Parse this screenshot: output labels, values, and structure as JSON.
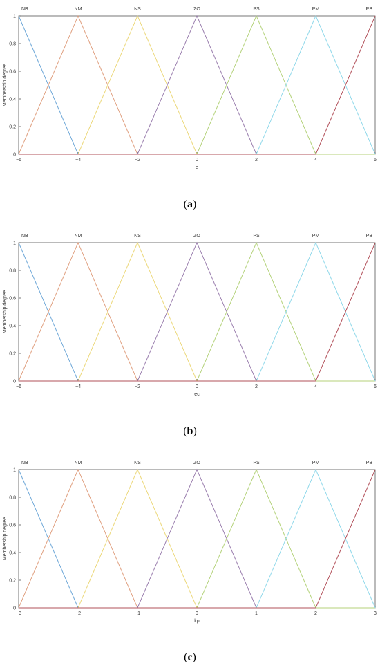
{
  "colors": [
    "#6fa8d8",
    "#e0a080",
    "#ecd87a",
    "#9a7eae",
    "#b4d27a",
    "#8fd8ea",
    "#b2505a"
  ],
  "chart_data": [
    {
      "type": "line",
      "caption": {
        "open": "(",
        "letter": "a",
        "close": ")"
      },
      "xlabel": "e",
      "ylabel": "Membership degree",
      "xlim": [
        -6,
        6
      ],
      "ylim": [
        0,
        1
      ],
      "xticks": [
        "−6",
        "−4",
        "−2",
        "0",
        "2",
        "4",
        "6"
      ],
      "yticks": [
        "0",
        "0.2",
        "0.4",
        "0.6",
        "0.8",
        "1"
      ],
      "grid": false,
      "series": [
        {
          "name": "NB",
          "x": [
            -6,
            -4
          ],
          "y": [
            1,
            0
          ]
        },
        {
          "name": "NM",
          "x": [
            -6,
            -4,
            -2
          ],
          "y": [
            0,
            1,
            0
          ]
        },
        {
          "name": "NS",
          "x": [
            -4,
            -2,
            0
          ],
          "y": [
            0,
            1,
            0
          ]
        },
        {
          "name": "ZO",
          "x": [
            -2,
            0,
            2
          ],
          "y": [
            0,
            1,
            0
          ]
        },
        {
          "name": "PS",
          "x": [
            0,
            2,
            4
          ],
          "y": [
            0,
            1,
            0
          ]
        },
        {
          "name": "PM",
          "x": [
            2,
            4,
            6
          ],
          "y": [
            0,
            1,
            0
          ]
        },
        {
          "name": "PB",
          "x": [
            4,
            6
          ],
          "y": [
            0,
            1
          ]
        }
      ]
    },
    {
      "type": "line",
      "caption": {
        "open": "(",
        "letter": "b",
        "close": ")"
      },
      "xlabel": "ec",
      "ylabel": "Membership degree",
      "xlim": [
        -6,
        6
      ],
      "ylim": [
        0,
        1
      ],
      "xticks": [
        "−6",
        "−4",
        "−2",
        "0",
        "2",
        "4",
        "6"
      ],
      "yticks": [
        "0",
        "0.2",
        "0.4",
        "0.6",
        "0.8",
        "1"
      ],
      "grid": false,
      "series": [
        {
          "name": "NB",
          "x": [
            -6,
            -4
          ],
          "y": [
            1,
            0
          ]
        },
        {
          "name": "NM",
          "x": [
            -6,
            -4,
            -2
          ],
          "y": [
            0,
            1,
            0
          ]
        },
        {
          "name": "NS",
          "x": [
            -4,
            -2,
            0
          ],
          "y": [
            0,
            1,
            0
          ]
        },
        {
          "name": "ZO",
          "x": [
            -2,
            0,
            2
          ],
          "y": [
            0,
            1,
            0
          ]
        },
        {
          "name": "PS",
          "x": [
            0,
            2,
            4
          ],
          "y": [
            0,
            1,
            0
          ]
        },
        {
          "name": "PM",
          "x": [
            2,
            4,
            6
          ],
          "y": [
            0,
            1,
            0
          ]
        },
        {
          "name": "PB",
          "x": [
            4,
            6
          ],
          "y": [
            0,
            1
          ]
        }
      ]
    },
    {
      "type": "line",
      "caption": {
        "open": "(",
        "letter": "c",
        "close": ")"
      },
      "xlabel": "kp",
      "ylabel": "Membership degree",
      "xlim": [
        -3,
        3
      ],
      "ylim": [
        0,
        1
      ],
      "xticks": [
        "−3",
        "−2",
        "−1",
        "0",
        "1",
        "2",
        "3"
      ],
      "yticks": [
        "0",
        "0.2",
        "0.4",
        "0.6",
        "0.8",
        "1"
      ],
      "grid": false,
      "series": [
        {
          "name": "NB",
          "x": [
            -3,
            -2
          ],
          "y": [
            1,
            0
          ]
        },
        {
          "name": "NM",
          "x": [
            -3,
            -2,
            -1
          ],
          "y": [
            0,
            1,
            0
          ]
        },
        {
          "name": "NS",
          "x": [
            -2,
            -1,
            0
          ],
          "y": [
            0,
            1,
            0
          ]
        },
        {
          "name": "ZO",
          "x": [
            -1,
            0,
            1
          ],
          "y": [
            0,
            1,
            0
          ]
        },
        {
          "name": "PS",
          "x": [
            0,
            1,
            2
          ],
          "y": [
            0,
            1,
            0
          ]
        },
        {
          "name": "PM",
          "x": [
            1,
            2,
            3
          ],
          "y": [
            0,
            1,
            0
          ]
        },
        {
          "name": "PB",
          "x": [
            2,
            3
          ],
          "y": [
            0,
            1
          ]
        }
      ]
    }
  ]
}
